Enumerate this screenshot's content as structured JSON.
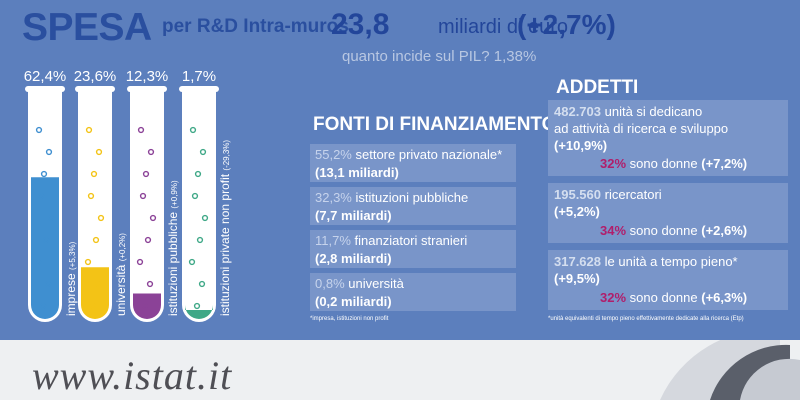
{
  "header": {
    "title": "SPESA",
    "subtitle": "per R&D Intra-muros",
    "amount": "23,8",
    "unit": "miliardi di euro",
    "change": "(+2,7%)",
    "pil_question": "quanto incide sul PIL? 1,38%"
  },
  "chart_data": {
    "type": "bar",
    "categories": [
      "imprese",
      "università",
      "istituzioni pubbliche",
      "istituzioni private non profit"
    ],
    "values": [
      62.4,
      23.6,
      12.3,
      1.7
    ],
    "value_labels": [
      "62,4%",
      "23,6%",
      "12,3%",
      "1,7%"
    ],
    "changes": [
      "(+5,3%)",
      "(+0,2%)",
      "(+0,9%)",
      "(-29,3%)"
    ],
    "colors": [
      "#3f8fd0",
      "#f3c316",
      "#8b4297",
      "#3fa887"
    ],
    "ylim": [
      0,
      100
    ]
  },
  "fonti": {
    "title": "FONTI DI FINANZIAMENTO",
    "items": [
      {
        "pct": "55,2%",
        "label": "settore privato nazionale*",
        "amount": "(13,1 miliardi)"
      },
      {
        "pct": "32,3%",
        "label": "istituzioni pubbliche",
        "amount": "(7,7 miliardi)"
      },
      {
        "pct": "11,7%",
        "label": "finanziatori stranieri",
        "amount": "(2,8 miliardi)"
      },
      {
        "pct": "0,8%",
        "label": "università",
        "amount": "(0,2 miliardi)"
      }
    ],
    "note": "*impresa, istituzioni non profit"
  },
  "addetti": {
    "title": "ADDETTI",
    "items": [
      {
        "number": "482.703",
        "text1": "unità si dedicano",
        "text2": "ad attività di ricerca e sviluppo",
        "change": "(+10,9%)",
        "women_pct": "32%",
        "women_text": "sono donne",
        "women_change": "(+7,2%)"
      },
      {
        "number": "195.560",
        "text1": "ricercatori",
        "change": "(+5,2%)",
        "women_pct": "34%",
        "women_text": "sono donne",
        "women_change": "(+2,6%)"
      },
      {
        "number": "317.628",
        "text1": "le unità a tempo pieno*",
        "change": "(+9,5%)",
        "women_pct": "32%",
        "women_text": "sono donne",
        "women_change": "(+6,3%)"
      }
    ],
    "note": "*unità equivalenti di tempo pieno effettivamente dedicate alla ricerca (Etp)"
  },
  "footer": {
    "site": "www.istat.it"
  }
}
